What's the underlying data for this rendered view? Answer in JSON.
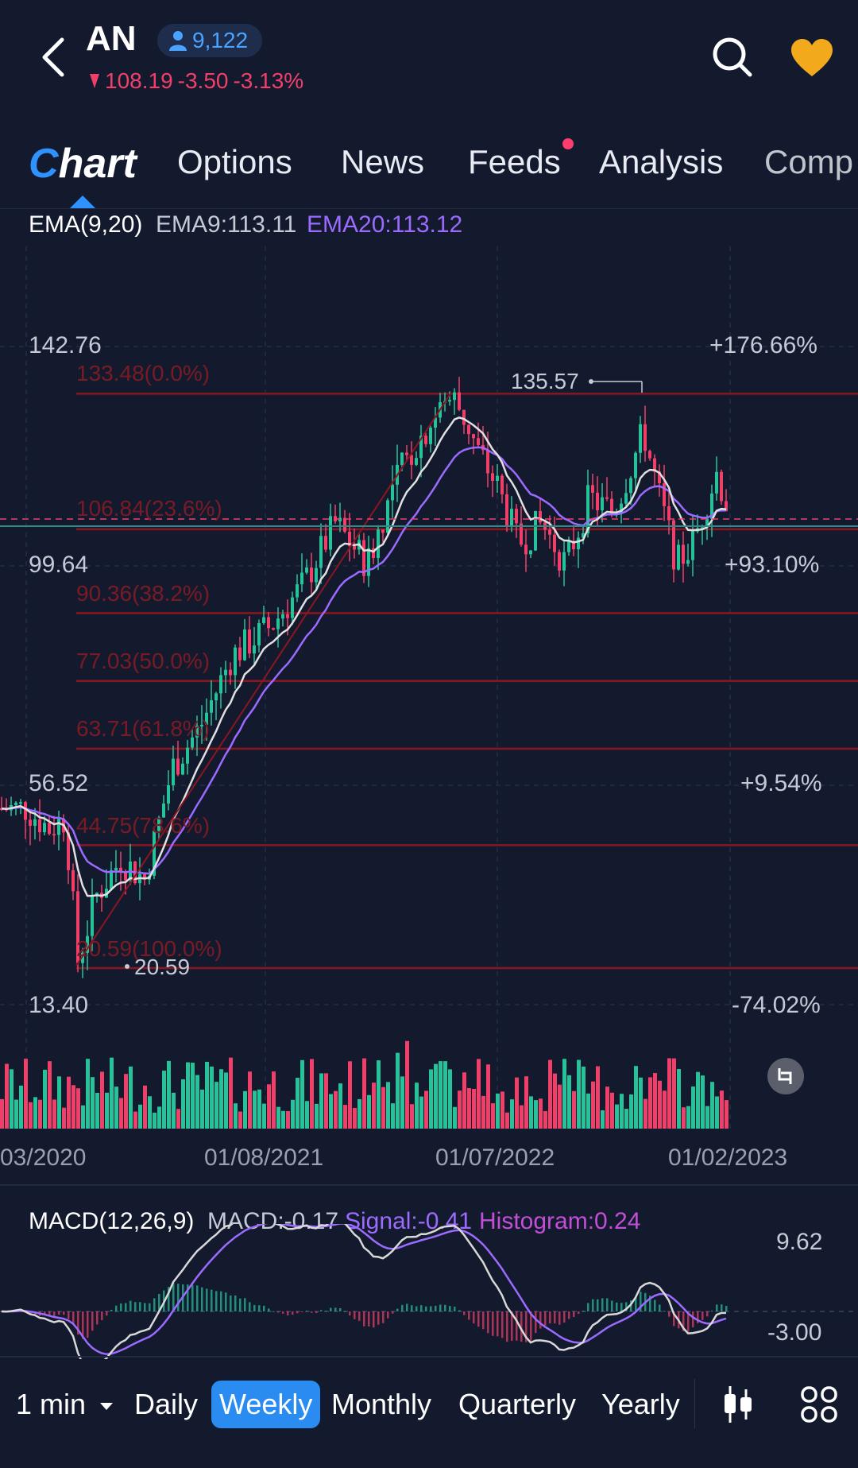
{
  "header": {
    "ticker": "AN",
    "followers": "9,122",
    "price": "108.19",
    "change": "-3.50",
    "change_pct": "-3.13%",
    "down_color": "#f0406a"
  },
  "tabs": [
    {
      "label": "Chart"
    },
    {
      "label": "Options"
    },
    {
      "label": "News"
    },
    {
      "label": "Feeds"
    },
    {
      "label": "Analysis"
    },
    {
      "label": "Comp"
    }
  ],
  "ema": {
    "title": "EMA(9,20)",
    "ema9": "EMA9:113.11",
    "ema20": "EMA20:113.12"
  },
  "price_axis": {
    "left": [
      "142.76",
      "99.64",
      "56.52",
      "13.40"
    ],
    "right": [
      "+176.66%",
      "+93.10%",
      "+9.54%",
      "-74.02%"
    ]
  },
  "fib_levels": [
    {
      "label": "133.48(0.0%)",
      "price": 133.48
    },
    {
      "label": "106.84(23.6%)",
      "price": 106.84
    },
    {
      "label": "90.36(38.2%)",
      "price": 90.36
    },
    {
      "label": "77.03(50.0%)",
      "price": 77.03
    },
    {
      "label": "63.71(61.8%)",
      "price": 63.71
    },
    {
      "label": "44.75(78.6%)",
      "price": 44.75
    },
    {
      "label": "20.59(100.0%)",
      "price": 20.59
    }
  ],
  "markers": {
    "high": "135.57",
    "low": "20.59"
  },
  "x_axis": [
    "03/2020",
    "01/08/2021",
    "01/07/2022",
    "01/02/2023"
  ],
  "macd": {
    "title": "MACD(12,26,9)",
    "macd": "MACD:-0.17",
    "signal": "Signal:-0.41",
    "histogram": "Histogram:0.24",
    "axis_top": "9.62",
    "axis_bottom": "-3.00"
  },
  "periods": {
    "interval": "1 min",
    "daily": "Daily",
    "weekly": "Weekly",
    "monthly": "Monthly",
    "quarterly": "Quarterly",
    "yearly": "Yearly"
  },
  "colors": {
    "up": "#26c29a",
    "down": "#f0406a",
    "ema9": "#e0e0e0",
    "ema20": "#9b6bff",
    "fib": "#8a1622",
    "accent": "#2a8cf0"
  },
  "chart_data": {
    "type": "candlestick",
    "price_range": [
      13.4,
      142.76
    ],
    "x": [
      "03/2020",
      "01/08/2021",
      "01/07/2022",
      "01/02/2023"
    ],
    "last_close": 108.19,
    "high": 135.57,
    "low": 20.59,
    "series": [
      {
        "name": "EMA9",
        "value": 113.11
      },
      {
        "name": "EMA20",
        "value": 113.12
      }
    ],
    "fibonacci": [
      133.48,
      106.84,
      90.36,
      77.03,
      63.71,
      44.75,
      20.59
    ],
    "macd": {
      "macd": -0.17,
      "signal": -0.41,
      "histogram": 0.24,
      "range": [
        -3.0,
        9.62
      ]
    }
  }
}
